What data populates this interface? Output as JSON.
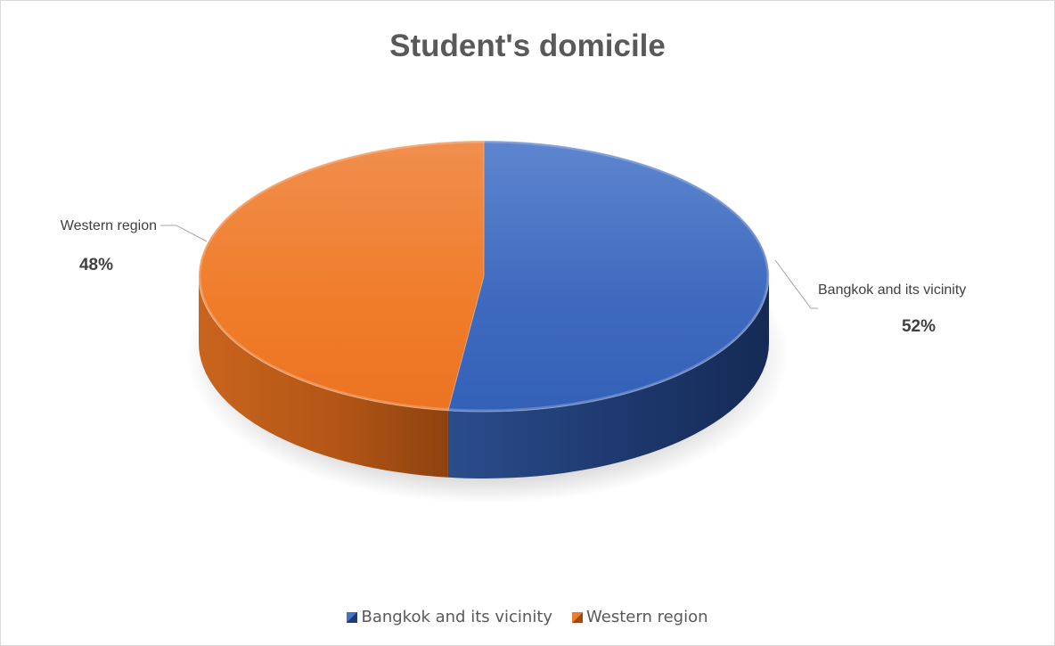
{
  "chart_data": {
    "type": "pie",
    "title": "Student's domicile",
    "series": [
      {
        "name": "",
        "categories": [
          "Bangkok and its vicinity",
          "Western region"
        ],
        "values": [
          52,
          48
        ]
      }
    ],
    "slices": [
      {
        "label": "Bangkok and its vicinity",
        "value": 52,
        "display": "52%",
        "color": "#4472C4"
      },
      {
        "label": "Western region",
        "value": 48,
        "display": "48%",
        "color": "#ED7D31"
      }
    ],
    "legend": {
      "position": "bottom",
      "entries": [
        "Bangkok and its vicinity",
        "Western region"
      ]
    },
    "style": "3d"
  }
}
